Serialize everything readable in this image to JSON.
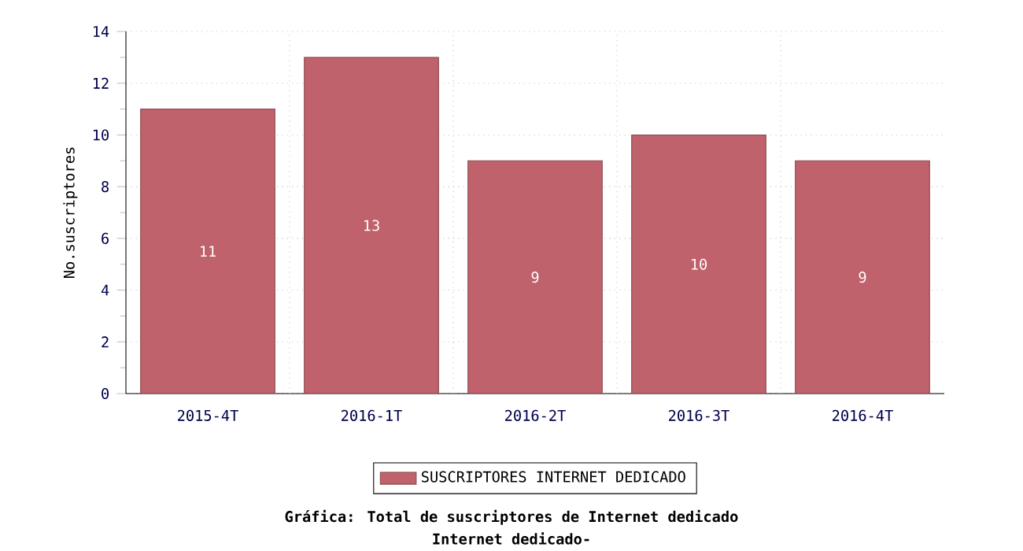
{
  "chart_data": {
    "type": "bar",
    "title": "Gráfica: Total de suscriptores de Internet dedicado",
    "subtitle": "Internet dedicado-",
    "ylabel": "No.suscriptores",
    "categories": [
      "2015-4T",
      "2016-1T",
      "2016-2T",
      "2016-3T",
      "2016-4T"
    ],
    "series": [
      {
        "name": "SUSCRIPTORES INTERNET DEDICADO",
        "color": "#c0626c",
        "values": [
          11,
          13,
          9,
          10,
          9
        ]
      }
    ],
    "ylim": [
      0,
      14
    ],
    "yticks": [
      0,
      2,
      4,
      6,
      8,
      10,
      12,
      14
    ],
    "grid": true,
    "legend": "bottom",
    "data_labels": true
  }
}
